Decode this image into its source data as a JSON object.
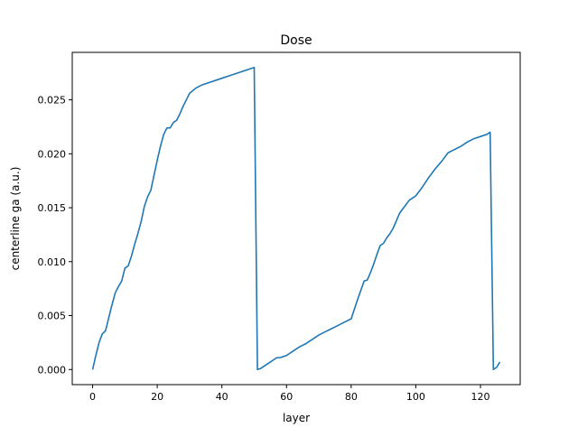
{
  "chart_data": {
    "type": "line",
    "title": "Dose",
    "xlabel": "layer",
    "ylabel": "centerline ga (a.u.)",
    "xlim": [
      -6.3,
      132.3
    ],
    "ylim": [
      -0.0014,
      0.0294
    ],
    "xticks": [
      0,
      20,
      40,
      60,
      80,
      100,
      120
    ],
    "xtick_labels": [
      "0",
      "20",
      "40",
      "60",
      "80",
      "100",
      "120"
    ],
    "yticks": [
      0.0,
      0.005,
      0.01,
      0.015,
      0.02,
      0.025
    ],
    "ytick_labels": [
      "0.000",
      "0.005",
      "0.010",
      "0.015",
      "0.020",
      "0.025"
    ],
    "grid": false,
    "line_color": "#1f77b4",
    "series": [
      {
        "x": [
          0,
          1,
          2,
          3,
          4,
          5,
          6,
          7,
          8,
          9,
          10,
          11,
          12,
          13,
          14,
          15,
          16,
          17,
          18,
          19,
          20,
          21,
          22,
          23,
          24,
          25,
          26,
          27,
          28,
          29,
          30,
          32,
          34,
          36,
          38,
          40,
          42,
          44,
          46,
          48,
          50,
          51,
          52,
          53,
          54,
          55,
          56,
          57,
          58,
          59,
          60,
          62,
          64,
          66,
          68,
          70,
          72,
          74,
          76,
          78,
          80,
          82,
          84,
          85,
          86,
          87,
          88,
          89,
          90,
          91,
          92,
          93,
          94,
          95,
          96,
          97,
          98,
          99,
          100,
          102,
          104,
          106,
          108,
          110,
          112,
          114,
          116,
          118,
          120,
          122,
          123,
          124,
          125,
          126
        ],
        "y": [
          0.0,
          0.0013,
          0.0025,
          0.0033,
          0.0036,
          0.0048,
          0.006,
          0.0071,
          0.0077,
          0.0082,
          0.0094,
          0.0096,
          0.0105,
          0.0116,
          0.0126,
          0.0137,
          0.0151,
          0.016,
          0.0166,
          0.018,
          0.0194,
          0.0207,
          0.0218,
          0.0224,
          0.0224,
          0.0229,
          0.0231,
          0.0237,
          0.0244,
          0.025,
          0.0256,
          0.0261,
          0.0264,
          0.0266,
          0.0268,
          0.027,
          0.0272,
          0.0274,
          0.0276,
          0.0278,
          0.028,
          0.0,
          0.0001,
          0.0003,
          0.0005,
          0.0007,
          0.0009,
          0.0011,
          0.0011,
          0.0012,
          0.0013,
          0.0017,
          0.0021,
          0.0024,
          0.0028,
          0.0032,
          0.0035,
          0.0038,
          0.0041,
          0.0044,
          0.0047,
          0.0065,
          0.0082,
          0.0083,
          0.009,
          0.0098,
          0.0107,
          0.0115,
          0.0117,
          0.0122,
          0.0126,
          0.0131,
          0.0138,
          0.0145,
          0.0149,
          0.0153,
          0.0157,
          0.0159,
          0.0161,
          0.0169,
          0.0178,
          0.0186,
          0.0193,
          0.0201,
          0.0204,
          0.0207,
          0.0211,
          0.0214,
          0.0216,
          0.0218,
          0.022,
          0.0,
          0.0002,
          0.0007
        ]
      }
    ]
  }
}
